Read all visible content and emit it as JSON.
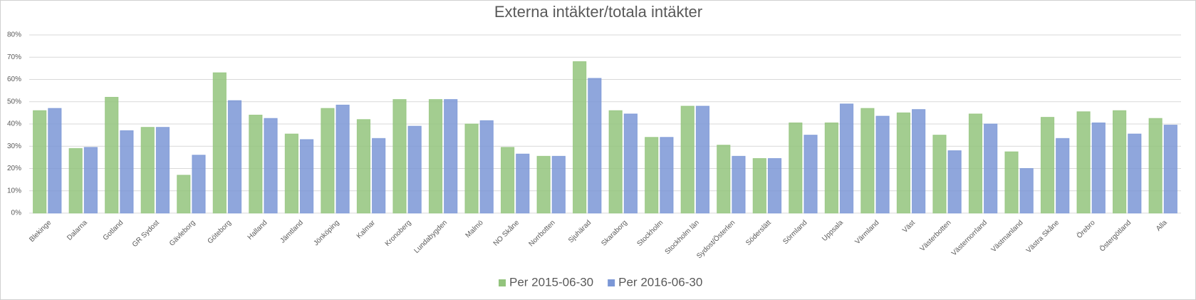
{
  "chart_data": {
    "type": "bar",
    "title": "Externa intäkter/totala intäkter",
    "categories": [
      "Blekinge",
      "Dalarna",
      "Gotland",
      "GR Sydost",
      "Gävleborg",
      "Göteborg",
      "Halland",
      "Jämtland",
      "Jönköping",
      "Kalmar",
      "Kronoberg",
      "Lundabygden",
      "Malmö",
      "NO Skåne",
      "Norrbotten",
      "Sjuhärad",
      "Skaraborg",
      "Stockholm",
      "Stockholm län",
      "Sydost/Österlen",
      "Söderslätt",
      "Sörmland",
      "Uppsala",
      "Värmland",
      "Väst",
      "Västerbotten",
      "Västernorrland",
      "Västmanland",
      "Västra Skåne",
      "Örebro",
      "Östergötland",
      "Alla"
    ],
    "series": [
      {
        "name": "Per 2015-06-30",
        "color": "#93c47d",
        "values": [
          46,
          29,
          52,
          38.5,
          17,
          63,
          44,
          35.5,
          47,
          42,
          51,
          51,
          40,
          29.5,
          25.5,
          68,
          46,
          34,
          48,
          30.5,
          24.5,
          40.5,
          40.5,
          47,
          45,
          35,
          44.5,
          27.5,
          43,
          45.5,
          46,
          42.5
        ]
      },
      {
        "name": "Per 2016-06-30",
        "color": "#7b97d6",
        "values": [
          47,
          29.5,
          37,
          38.5,
          26,
          50.5,
          42.5,
          33,
          48.5,
          33.5,
          39,
          51,
          41.5,
          26.5,
          25.5,
          60.5,
          44.5,
          34,
          48,
          25.5,
          24.5,
          35,
          49,
          43.5,
          46.5,
          28,
          40,
          20,
          33.5,
          40.5,
          35.5,
          39.5
        ]
      }
    ],
    "ylim": [
      0,
      80
    ],
    "yticks": [
      {
        "value": 0,
        "label": "0%"
      },
      {
        "value": 10,
        "label": "10%"
      },
      {
        "value": 20,
        "label": "20%"
      },
      {
        "value": 30,
        "label": "30%"
      },
      {
        "value": 40,
        "label": "40%"
      },
      {
        "value": 50,
        "label": "50%"
      },
      {
        "value": 60,
        "label": "60%"
      },
      {
        "value": 70,
        "label": "70%"
      },
      {
        "value": 80,
        "label": "80%"
      }
    ],
    "grid": true,
    "legend": "bottom"
  }
}
